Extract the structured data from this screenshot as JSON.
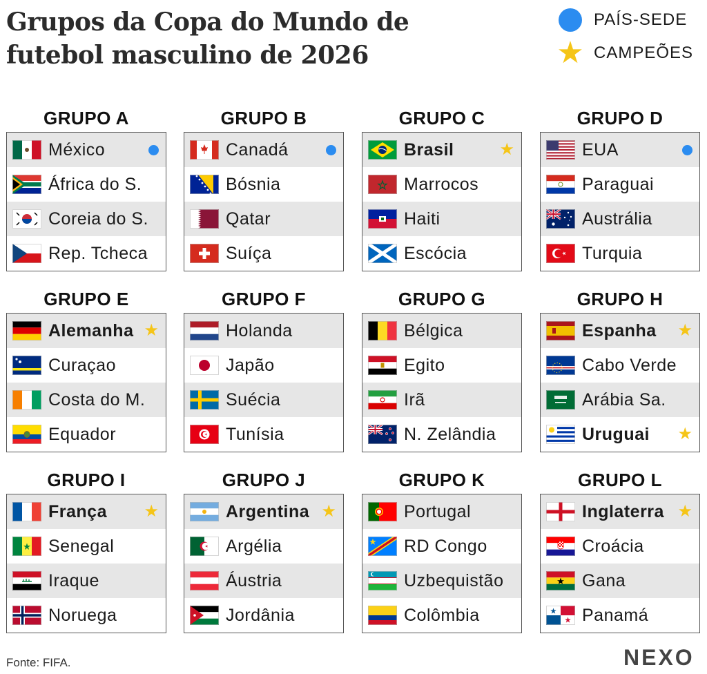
{
  "title": "Grupos da Copa do Mundo de futebol masculino de 2026",
  "legend": {
    "host_label": "PAÍS-SEDE",
    "champion_label": "CAMPEÕES"
  },
  "colors": {
    "host": "#2b8cf0",
    "champion": "#f5c518"
  },
  "source": "Fonte: FIFA.",
  "logo": "NEXO",
  "groups": [
    {
      "name": "GRUPO A",
      "teams": [
        {
          "name": "México",
          "flag": "mexico",
          "host": true,
          "champion": false
        },
        {
          "name": "África do S.",
          "flag": "south-africa",
          "host": false,
          "champion": false
        },
        {
          "name": "Coreia do S.",
          "flag": "south-korea",
          "host": false,
          "champion": false
        },
        {
          "name": "Rep. Tcheca",
          "flag": "czech",
          "host": false,
          "champion": false
        }
      ]
    },
    {
      "name": "GRUPO B",
      "teams": [
        {
          "name": "Canadá",
          "flag": "canada",
          "host": true,
          "champion": false
        },
        {
          "name": "Bósnia",
          "flag": "bosnia",
          "host": false,
          "champion": false
        },
        {
          "name": "Qatar",
          "flag": "qatar",
          "host": false,
          "champion": false
        },
        {
          "name": "Suíça",
          "flag": "switzerland",
          "host": false,
          "champion": false
        }
      ]
    },
    {
      "name": "GRUPO C",
      "teams": [
        {
          "name": "Brasil",
          "flag": "brazil",
          "host": false,
          "champion": true
        },
        {
          "name": "Marrocos",
          "flag": "morocco",
          "host": false,
          "champion": false
        },
        {
          "name": "Haiti",
          "flag": "haiti",
          "host": false,
          "champion": false
        },
        {
          "name": "Escócia",
          "flag": "scotland",
          "host": false,
          "champion": false
        }
      ]
    },
    {
      "name": "GRUPO D",
      "teams": [
        {
          "name": "EUA",
          "flag": "usa",
          "host": true,
          "champion": false
        },
        {
          "name": "Paraguai",
          "flag": "paraguay",
          "host": false,
          "champion": false
        },
        {
          "name": "Austrália",
          "flag": "australia",
          "host": false,
          "champion": false
        },
        {
          "name": "Turquia",
          "flag": "turkey",
          "host": false,
          "champion": false
        }
      ]
    },
    {
      "name": "GRUPO E",
      "teams": [
        {
          "name": "Alemanha",
          "flag": "germany",
          "host": false,
          "champion": true
        },
        {
          "name": "Curaçao",
          "flag": "curacao",
          "host": false,
          "champion": false
        },
        {
          "name": "Costa do M.",
          "flag": "ivory-coast",
          "host": false,
          "champion": false
        },
        {
          "name": "Equador",
          "flag": "ecuador",
          "host": false,
          "champion": false
        }
      ]
    },
    {
      "name": "GRUPO F",
      "teams": [
        {
          "name": "Holanda",
          "flag": "netherlands",
          "host": false,
          "champion": false
        },
        {
          "name": "Japão",
          "flag": "japan",
          "host": false,
          "champion": false
        },
        {
          "name": "Suécia",
          "flag": "sweden",
          "host": false,
          "champion": false
        },
        {
          "name": "Tunísia",
          "flag": "tunisia",
          "host": false,
          "champion": false
        }
      ]
    },
    {
      "name": "GRUPO G",
      "teams": [
        {
          "name": "Bélgica",
          "flag": "belgium",
          "host": false,
          "champion": false
        },
        {
          "name": "Egito",
          "flag": "egypt",
          "host": false,
          "champion": false
        },
        {
          "name": "Irã",
          "flag": "iran",
          "host": false,
          "champion": false
        },
        {
          "name": "N. Zelândia",
          "flag": "new-zealand",
          "host": false,
          "champion": false
        }
      ]
    },
    {
      "name": "GRUPO H",
      "teams": [
        {
          "name": "Espanha",
          "flag": "spain",
          "host": false,
          "champion": true
        },
        {
          "name": "Cabo Verde",
          "flag": "cape-verde",
          "host": false,
          "champion": false
        },
        {
          "name": "Arábia Sa.",
          "flag": "saudi-arabia",
          "host": false,
          "champion": false
        },
        {
          "name": "Uruguai",
          "flag": "uruguay",
          "host": false,
          "champion": true
        }
      ]
    },
    {
      "name": "GRUPO I",
      "teams": [
        {
          "name": "França",
          "flag": "france",
          "host": false,
          "champion": true
        },
        {
          "name": "Senegal",
          "flag": "senegal",
          "host": false,
          "champion": false
        },
        {
          "name": "Iraque",
          "flag": "iraq",
          "host": false,
          "champion": false
        },
        {
          "name": "Noruega",
          "flag": "norway",
          "host": false,
          "champion": false
        }
      ]
    },
    {
      "name": "GRUPO J",
      "teams": [
        {
          "name": "Argentina",
          "flag": "argentina",
          "host": false,
          "champion": true
        },
        {
          "name": "Argélia",
          "flag": "algeria",
          "host": false,
          "champion": false
        },
        {
          "name": "Áustria",
          "flag": "austria",
          "host": false,
          "champion": false
        },
        {
          "name": "Jordânia",
          "flag": "jordan",
          "host": false,
          "champion": false
        }
      ]
    },
    {
      "name": "GRUPO K",
      "teams": [
        {
          "name": "Portugal",
          "flag": "portugal",
          "host": false,
          "champion": false
        },
        {
          "name": "RD Congo",
          "flag": "dr-congo",
          "host": false,
          "champion": false
        },
        {
          "name": "Uzbequistão",
          "flag": "uzbekistan",
          "host": false,
          "champion": false
        },
        {
          "name": "Colômbia",
          "flag": "colombia",
          "host": false,
          "champion": false
        }
      ]
    },
    {
      "name": "GRUPO L",
      "teams": [
        {
          "name": "Inglaterra",
          "flag": "england",
          "host": false,
          "champion": true
        },
        {
          "name": "Croácia",
          "flag": "croatia",
          "host": false,
          "champion": false
        },
        {
          "name": "Gana",
          "flag": "ghana",
          "host": false,
          "champion": false
        },
        {
          "name": "Panamá",
          "flag": "panama",
          "host": false,
          "champion": false
        }
      ]
    }
  ]
}
